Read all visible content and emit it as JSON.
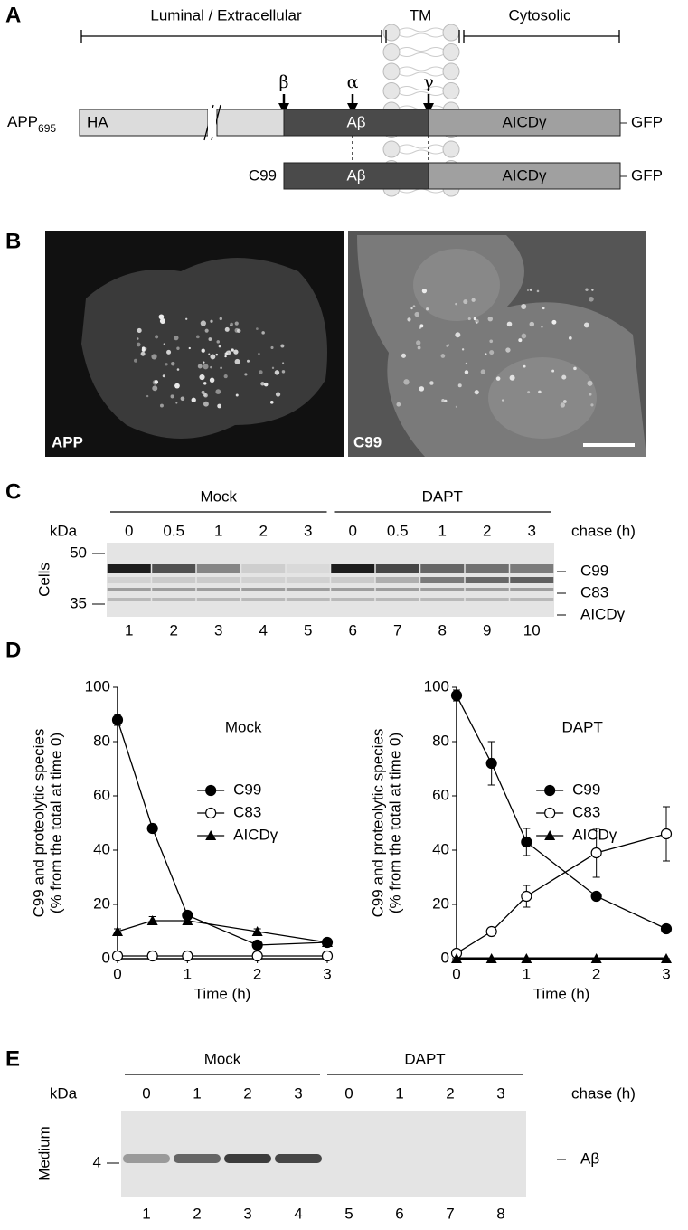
{
  "panel_a": {
    "label": "A",
    "regions": [
      "Luminal / Extracellular",
      "TM",
      "Cytosolic"
    ],
    "cleavage_sites": [
      "β",
      "α",
      "γ"
    ],
    "app": {
      "name": "APP",
      "subscript": "695",
      "tag": "HA",
      "abeta": "Aβ",
      "aicd": "AICDγ",
      "gfp": "GFP"
    },
    "c99": {
      "name": "C99",
      "abeta": "Aβ",
      "aicd": "AICDγ",
      "gfp": "GFP"
    }
  },
  "panel_b": {
    "label": "B",
    "images": [
      "APP",
      "C99"
    ]
  },
  "panel_c": {
    "label": "C",
    "groups": [
      "Mock",
      "DAPT"
    ],
    "unit": "kDa",
    "chase_times": [
      "0",
      "0.5",
      "1",
      "2",
      "3",
      "0",
      "0.5",
      "1",
      "2",
      "3"
    ],
    "chase_label": "chase (h)",
    "markers": [
      50,
      35
    ],
    "row_label": "Cells",
    "bands": [
      "C99",
      "C83",
      "AICDγ"
    ],
    "lanes": [
      1,
      2,
      3,
      4,
      5,
      6,
      7,
      8,
      9,
      10
    ]
  },
  "panel_d": {
    "label": "D"
  },
  "chart_data": [
    {
      "type": "line",
      "title": "Mock",
      "x_label": "Time (h)",
      "y_label": [
        "C99 and proteolytic species",
        "(% from the total at time 0)"
      ],
      "x": [
        0,
        0.5,
        1,
        2,
        3
      ],
      "xlim": [
        0,
        3
      ],
      "xticks": [
        0,
        1,
        2,
        3
      ],
      "ylim": [
        0,
        100
      ],
      "yticks": [
        0,
        20,
        40,
        60,
        80,
        100
      ],
      "legend": "right",
      "series": [
        {
          "name": "C99",
          "color": "#000000",
          "marker": "filled-circle",
          "values": [
            88,
            48,
            16,
            5,
            6
          ],
          "errors": [
            2,
            1,
            1,
            1,
            1
          ]
        },
        {
          "name": "C83",
          "color": "#000000",
          "marker": "open-circle",
          "values": [
            1,
            1,
            1,
            1,
            1
          ],
          "errors": [
            0,
            0,
            0,
            0,
            0
          ]
        },
        {
          "name": "AICDγ",
          "color": "#000000",
          "marker": "filled-triangle",
          "values": [
            10,
            14,
            14,
            10,
            6
          ],
          "errors": [
            1,
            1.5,
            1,
            1,
            1
          ]
        }
      ]
    },
    {
      "type": "line",
      "title": "DAPT",
      "x_label": "Time (h)",
      "y_label": [
        "C99 and proteolytic species",
        "(% from the total at time 0)"
      ],
      "x": [
        0,
        0.5,
        1,
        2,
        3
      ],
      "xlim": [
        0,
        3
      ],
      "xticks": [
        0,
        1,
        2,
        3
      ],
      "ylim": [
        0,
        100
      ],
      "yticks": [
        0,
        20,
        40,
        60,
        80,
        100
      ],
      "legend": "right",
      "series": [
        {
          "name": "C99",
          "color": "#000000",
          "marker": "filled-circle",
          "values": [
            97,
            72,
            43,
            23,
            11
          ],
          "errors": [
            2,
            8,
            5,
            1,
            1
          ]
        },
        {
          "name": "C83",
          "color": "#000000",
          "marker": "open-circle",
          "values": [
            2,
            10,
            23,
            39,
            46
          ],
          "errors": [
            1,
            1,
            4,
            9,
            10
          ]
        },
        {
          "name": "AICDγ",
          "color": "#000000",
          "marker": "filled-triangle",
          "values": [
            0,
            0,
            0,
            0,
            0
          ],
          "errors": [
            0,
            0,
            0,
            0,
            0
          ]
        }
      ]
    }
  ],
  "panel_e": {
    "label": "E",
    "groups": [
      "Mock",
      "DAPT"
    ],
    "unit": "kDa",
    "chase_times": [
      "0",
      "1",
      "2",
      "3",
      "0",
      "1",
      "2",
      "3"
    ],
    "chase_label": "chase (h)",
    "markers": [
      4
    ],
    "row_label": "Medium",
    "bands": [
      "Aβ"
    ],
    "lanes": [
      1,
      2,
      3,
      4,
      5,
      6,
      7,
      8
    ]
  }
}
